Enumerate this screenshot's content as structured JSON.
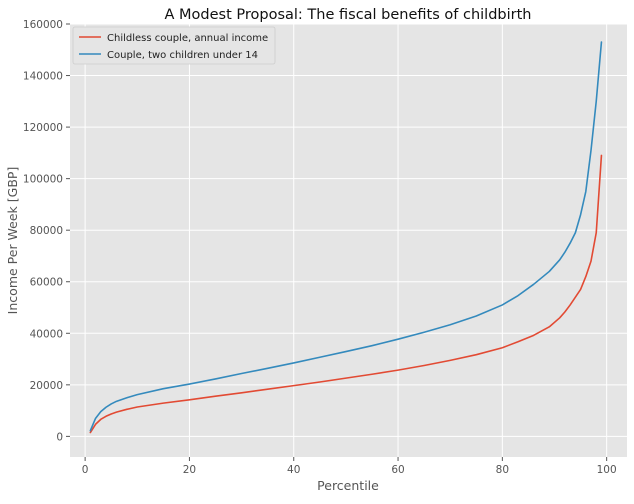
{
  "chart_data": {
    "type": "line",
    "title": "A Modest Proposal: The fiscal benefits of childbirth",
    "xlabel": "Percentile",
    "ylabel": "Income Per Week [GBP]",
    "xlim": [
      -2.9,
      103.9
    ],
    "ylim": [
      -8000,
      160000
    ],
    "xticks": [
      0,
      20,
      40,
      60,
      80,
      100
    ],
    "yticks": [
      0,
      20000,
      40000,
      60000,
      80000,
      100000,
      120000,
      140000,
      160000
    ],
    "grid": true,
    "legend_position": "top-left",
    "series": [
      {
        "name": "Childless couple, annual income",
        "color": "#e24a33",
        "x": [
          1,
          2,
          3,
          4,
          5,
          6,
          8,
          10,
          15,
          20,
          25,
          30,
          35,
          40,
          45,
          50,
          55,
          60,
          65,
          70,
          75,
          80,
          83,
          86,
          89,
          91,
          92,
          93,
          94,
          95,
          96,
          97,
          98,
          99
        ],
        "y": [
          1500,
          4700,
          6600,
          7800,
          8700,
          9400,
          10500,
          11400,
          12900,
          14200,
          15600,
          16900,
          18300,
          19700,
          21100,
          22600,
          24100,
          25700,
          27500,
          29500,
          31700,
          34400,
          36700,
          39200,
          42500,
          46000,
          48300,
          51000,
          54000,
          57000,
          62000,
          68000,
          79000,
          109000
        ]
      },
      {
        "name": "Couple, two children under 14",
        "color": "#348abd",
        "x": [
          1,
          2,
          3,
          4,
          5,
          6,
          8,
          10,
          15,
          20,
          25,
          30,
          35,
          40,
          45,
          50,
          55,
          60,
          65,
          70,
          75,
          80,
          83,
          86,
          89,
          91,
          92,
          93,
          94,
          95,
          96,
          97,
          98,
          99
        ],
        "y": [
          2200,
          7000,
          9600,
          11300,
          12600,
          13600,
          15000,
          16200,
          18500,
          20300,
          22300,
          24400,
          26400,
          28500,
          30700,
          32900,
          35200,
          37700,
          40400,
          43300,
          46700,
          51000,
          54600,
          59000,
          64000,
          68500,
          71500,
          75000,
          79000,
          86000,
          95000,
          111000,
          130000,
          153000
        ]
      }
    ]
  }
}
